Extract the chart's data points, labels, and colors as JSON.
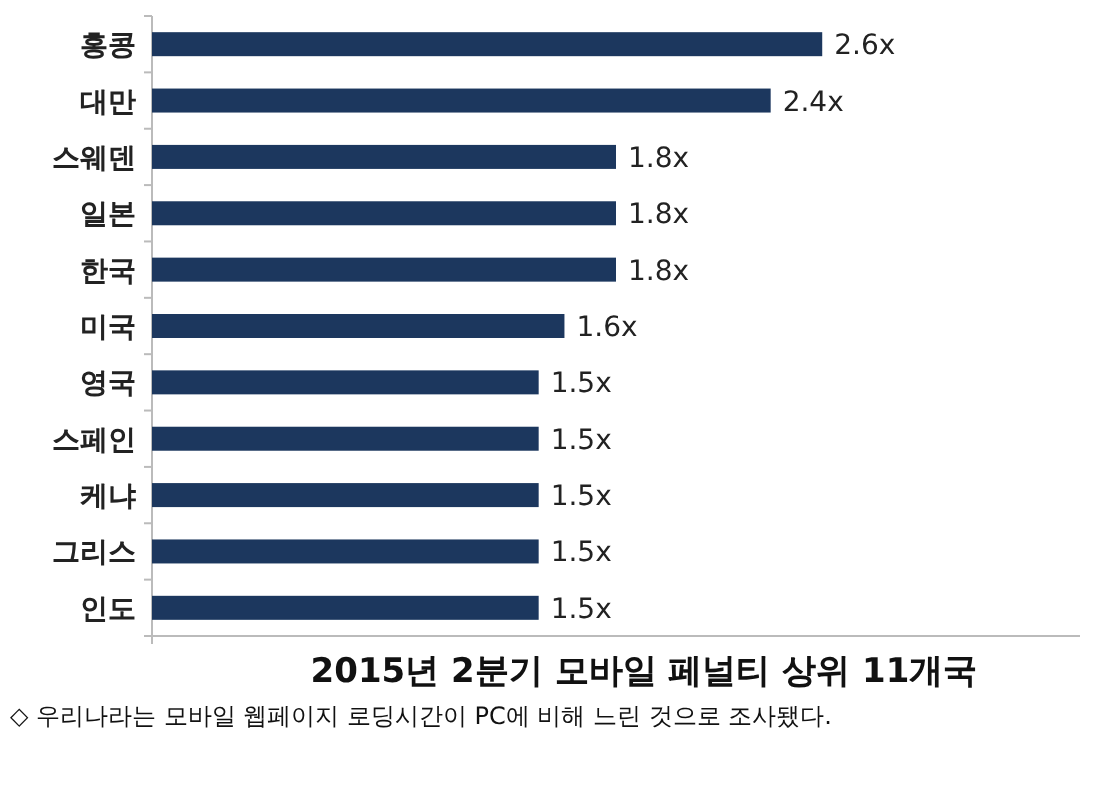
{
  "chart_data": {
    "type": "bar",
    "orientation": "horizontal",
    "title": "2015년 2분기 모바일 페널티 상위 11개국",
    "annotations": [
      "◇ 우리나라는 모바일 웹페이지 로딩시간이 PC에 비해 느린 것으로 조사됐다."
    ],
    "categories": [
      "홍콩",
      "대만",
      "스웨덴",
      "일본",
      "한국",
      "미국",
      "영국",
      "스페인",
      "케냐",
      "그리스",
      "인도"
    ],
    "values": [
      2.6,
      2.4,
      1.8,
      1.8,
      1.8,
      1.6,
      1.5,
      1.5,
      1.5,
      1.5,
      1.5
    ],
    "value_labels": [
      "2.6x",
      "2.4x",
      "1.8x",
      "1.8x",
      "1.8x",
      "1.6x",
      "1.5x",
      "1.5x",
      "1.5x",
      "1.5x",
      "1.5x"
    ],
    "color": "#1c375e",
    "xlim": [
      0,
      3.6
    ],
    "tick_labels": "y"
  }
}
